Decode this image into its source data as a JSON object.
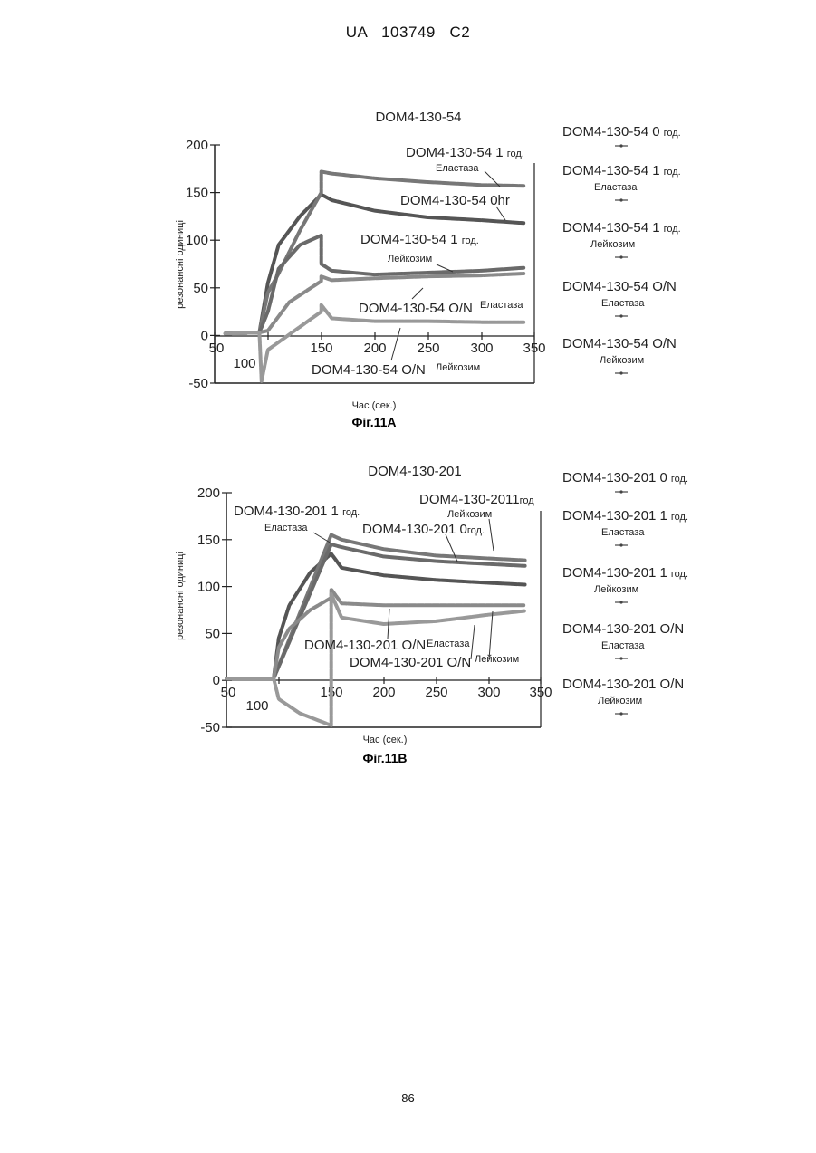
{
  "header": {
    "text": "UA   103749   C2"
  },
  "page_number": "86",
  "chart_data": [
    {
      "type": "line",
      "title": "DOM4-130-54",
      "caption": "Фіг.11A",
      "xlabel": "Час (сек.)",
      "ylabel": "резонансні одиниці",
      "xlim": [
        50,
        350
      ],
      "ylim": [
        -50,
        200
      ],
      "x_ticks": [
        "50",
        "100",
        "150",
        "200",
        "250",
        "300",
        "350"
      ],
      "y_ticks": [
        "200",
        "150",
        "100",
        "50",
        "0",
        "-50"
      ],
      "series": [
        {
          "name": "DOM4-130-54 0 год.",
          "x": [
            60,
            92,
            100,
            110,
            130,
            150,
            160,
            200,
            250,
            300,
            340
          ],
          "y": [
            2,
            3,
            55,
            95,
            125,
            148,
            142,
            131,
            124,
            121,
            118
          ]
        },
        {
          "name": "DOM4-130-54 1 год. Еластаза",
          "x": [
            60,
            92,
            100,
            110,
            130,
            150,
            150,
            160,
            200,
            250,
            300,
            340
          ],
          "y": [
            2,
            3,
            45,
            65,
            110,
            150,
            172,
            170,
            165,
            161,
            158,
            157
          ]
        },
        {
          "name": "DOM4-130-54 1 год. Лейкозим",
          "x": [
            60,
            92,
            100,
            110,
            130,
            150,
            150,
            160,
            200,
            250,
            300,
            340
          ],
          "y": [
            2,
            3,
            25,
            70,
            95,
            105,
            75,
            68,
            64,
            66,
            68,
            71
          ]
        },
        {
          "name": "DOM4-130-54 O/N Еластаза",
          "x": [
            60,
            92,
            100,
            120,
            150,
            150,
            160,
            200,
            250,
            300,
            340
          ],
          "y": [
            2,
            3,
            5,
            35,
            57,
            62,
            58,
            60,
            62,
            63,
            65
          ]
        },
        {
          "name": "DOM4-130-54 O/N Лейкозим",
          "x": [
            60,
            92,
            94,
            100,
            150,
            150,
            160,
            200,
            250,
            300,
            340
          ],
          "y": [
            2,
            3,
            -48,
            -15,
            25,
            32,
            18,
            15,
            15,
            14,
            14
          ]
        }
      ],
      "annotations": [
        {
          "text": "DOM4-130-54 1",
          "sub": "год.",
          "note": "Еластаза"
        },
        {
          "text": "DOM4-130-54 0hr"
        },
        {
          "text": "DOM4-130-54 1",
          "sub": "год.",
          "note": "Лейкозим"
        },
        {
          "text": "DOM4-130-54 O/N",
          "note": "Еластаза"
        },
        {
          "text": "DOM4-130-54 O/N",
          "note": "Лейкозим"
        }
      ],
      "legend": [
        {
          "label": "DOM4-130-54 0",
          "sub": "год.",
          "note": ""
        },
        {
          "label": "DOM4-130-54 1",
          "sub": "год.",
          "note": "Еластаза"
        },
        {
          "label": "DOM4-130-54 1",
          "sub": "год.",
          "note": "Лейкозим"
        },
        {
          "label": "DOM4-130-54 O/N",
          "sub": "",
          "note": "Еластаза"
        },
        {
          "label": "DOM4-130-54 O/N",
          "sub": "",
          "note": "Лейкозим"
        }
      ]
    },
    {
      "type": "line",
      "title": "DOM4-130-201",
      "caption": "Фіг.11B",
      "xlabel": "Час (сек.)",
      "ylabel": "резонансні одиниці",
      "xlim": [
        50,
        350
      ],
      "ylim": [
        -50,
        200
      ],
      "x_ticks": [
        "50",
        "100",
        "150",
        "200",
        "250",
        "300",
        "350"
      ],
      "y_ticks": [
        "200",
        "150",
        "100",
        "50",
        "0",
        "-50"
      ],
      "series": [
        {
          "name": "DOM4-130-201 0 год.",
          "x": [
            50,
            95,
            100,
            110,
            130,
            150,
            160,
            200,
            250,
            300,
            335
          ],
          "y": [
            2,
            2,
            45,
            80,
            115,
            135,
            120,
            112,
            107,
            104,
            102
          ]
        },
        {
          "name": "DOM4-130-201 1 год. Еластаза",
          "x": [
            50,
            95,
            150,
            160,
            200,
            250,
            300,
            335
          ],
          "y": [
            2,
            2,
            155,
            150,
            140,
            133,
            130,
            128
          ]
        },
        {
          "name": "DOM4-130-201 1 год. Лейкозим",
          "x": [
            50,
            95,
            150,
            160,
            200,
            250,
            300,
            335
          ],
          "y": [
            2,
            2,
            145,
            142,
            132,
            127,
            124,
            122
          ]
        },
        {
          "name": "DOM4-130-201 O/N Еластаза",
          "x": [
            50,
            95,
            100,
            110,
            130,
            150,
            150,
            160,
            200,
            250,
            300,
            335
          ],
          "y": [
            2,
            2,
            35,
            55,
            75,
            88,
            97,
            82,
            80,
            80,
            80,
            80
          ]
        },
        {
          "name": "DOM4-130-201 O/N Лейкозим",
          "x": [
            50,
            95,
            100,
            120,
            150,
            150,
            160,
            200,
            250,
            300,
            335
          ],
          "y": [
            2,
            2,
            -20,
            -35,
            -48,
            92,
            67,
            60,
            63,
            70,
            74
          ]
        }
      ],
      "annotations": [
        {
          "text": "DOM4-130-201 1",
          "sub": "год.",
          "note": "Еластаза"
        },
        {
          "text": "DOM4-130-2011",
          "sub": "год",
          "note": "Лейкозим"
        },
        {
          "text": "DOM4-130-201 0",
          "sub": "год."
        },
        {
          "text": "DOM4-130-201 O/N",
          "note": "Еластаза"
        },
        {
          "text": "DOM4-130-201 O/N",
          "note": "Лейкозим"
        }
      ],
      "legend": [
        {
          "label": "DOM4-130-201 0",
          "sub": "год.",
          "note": ""
        },
        {
          "label": "DOM4-130-201 1",
          "sub": "год.",
          "note": "Еластаза"
        },
        {
          "label": "DOM4-130-201 1",
          "sub": "год.",
          "note": "Лейкозим"
        },
        {
          "label": "DOM4-130-201 O/N",
          "sub": "",
          "note": "Еластаза"
        },
        {
          "label": "DOM4-130-201 O/N",
          "sub": "",
          "note": "Лейкозим"
        }
      ]
    }
  ]
}
